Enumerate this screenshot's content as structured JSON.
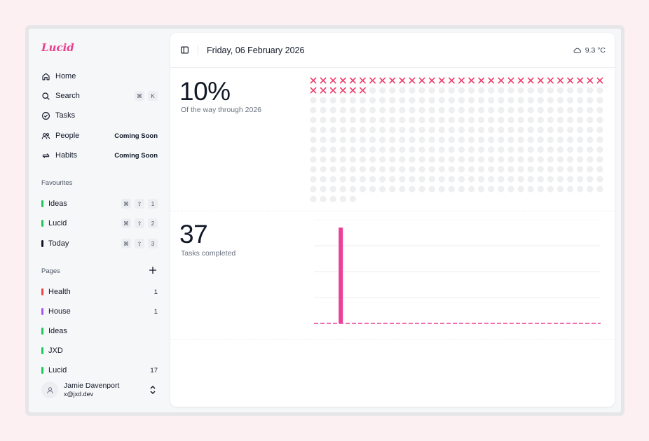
{
  "app": {
    "name": "Lucid"
  },
  "sidebar": {
    "nav": [
      {
        "label": "Home",
        "icon": "home-icon"
      },
      {
        "label": "Search",
        "icon": "search-icon",
        "shortcut": [
          "⌘",
          "K"
        ]
      },
      {
        "label": "Tasks",
        "icon": "tasks-icon"
      },
      {
        "label": "People",
        "icon": "people-icon",
        "badge": "Coming Soon"
      },
      {
        "label": "Habits",
        "icon": "habits-icon",
        "badge": "Coming Soon"
      }
    ],
    "favourites_label": "Favourites",
    "favourites": [
      {
        "label": "Ideas",
        "color": "#22c55e",
        "shortcut": [
          "⌘",
          "⇧",
          "1"
        ]
      },
      {
        "label": "Lucid",
        "color": "#22c55e",
        "shortcut": [
          "⌘",
          "⇧",
          "2"
        ]
      },
      {
        "label": "Today",
        "color": "#111827",
        "shortcut": [
          "⌘",
          "⇧",
          "3"
        ]
      }
    ],
    "pages_label": "Pages",
    "pages": [
      {
        "label": "Health",
        "color": "#ef4444",
        "count": "1"
      },
      {
        "label": "House",
        "color": "#a855f7",
        "count": "1"
      },
      {
        "label": "Ideas",
        "color": "#22c55e",
        "count": ""
      },
      {
        "label": "JXD",
        "color": "#22c55e",
        "count": ""
      },
      {
        "label": "Lucid",
        "color": "#22c55e",
        "count": "17"
      }
    ],
    "user": {
      "name": "Jamie Davenport",
      "email": "x@jxd.dev"
    }
  },
  "header": {
    "date": "Friday, 06 February 2026",
    "weather": "9.3 °C"
  },
  "year_progress": {
    "percent_text": "10%",
    "label": "Of the way through 2026",
    "days_total": 365,
    "days_passed": 36,
    "accent": "#f03a68",
    "dot_color": "#eeeff1"
  },
  "tasks": {
    "count_text": "37",
    "label": "Tasks completed"
  },
  "chart_data": {
    "type": "bar",
    "title": "Tasks completed",
    "values": [
      0,
      0,
      0,
      37,
      0,
      0,
      0,
      0,
      0,
      0,
      0,
      0,
      0,
      0,
      0,
      0,
      0,
      0,
      0,
      0,
      0,
      0,
      0,
      0,
      0,
      0,
      0,
      0,
      0,
      0,
      0,
      0,
      0,
      0,
      0,
      0,
      0,
      0,
      0,
      0,
      0,
      0
    ],
    "ylim": [
      0,
      40
    ],
    "grid": true,
    "color": "#ec3f96"
  }
}
